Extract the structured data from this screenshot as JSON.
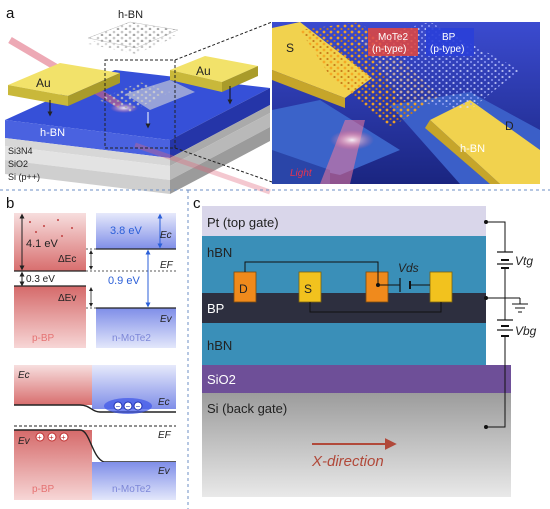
{
  "panels": {
    "a": "a",
    "b": "b",
    "c": "c"
  },
  "panel_a": {
    "hbn_flake": "h-BN",
    "au_left": "Au",
    "au_right": "Au",
    "hbn_layer": "h-BN",
    "si3n4": "Si3N4",
    "sio2": "SiO2",
    "si": "Si (p++)",
    "zoom": {
      "s": "S",
      "d": "D",
      "mote2": "MoTe2",
      "mote2_type": "(n-type)",
      "bp": "BP",
      "bp_type": "(p-type)",
      "hbn": "h-BN",
      "light": "Light"
    }
  },
  "panel_b": {
    "e41": "4.1 eV",
    "e38": "3.8 eV",
    "e03": "0.3 eV",
    "e09": "0.9 eV",
    "dEc": "ΔEc",
    "dEv": "ΔEv",
    "Ec": "Ec",
    "EF": "EF",
    "Ev": "Ev",
    "pbp": "p-BP",
    "nmote2": "n-MoTe2",
    "Ec_left": "Ec",
    "Ec_right": "Ec",
    "EF_b": "EF",
    "Ev_left": "Ev",
    "Ev_right": "Ev",
    "pbp2": "p-BP",
    "nmote2_2": "n-MoTe2"
  },
  "panel_c": {
    "pt": "Pt (top gate)",
    "hbn_top": "hBN",
    "bp": "BP",
    "hbn_bottom": "hBN",
    "sio2": "SiO2",
    "si": "Si (back gate)",
    "d": "D",
    "s": "S",
    "vds": "Vds",
    "vtg": "Vtg",
    "vbg": "Vbg",
    "xdir": "X-direction"
  },
  "colors": {
    "pt": "#d9d6ea",
    "hbn": "#3a8fb8",
    "bp": "#2d2f3f",
    "sio2": "#6e4f98",
    "si": "#b5b5b5",
    "electrode_orange": "#f08a1c",
    "electrode_yellow": "#f2c21e",
    "pbp": "#e07b7b",
    "mote2": "#9da9ee"
  }
}
